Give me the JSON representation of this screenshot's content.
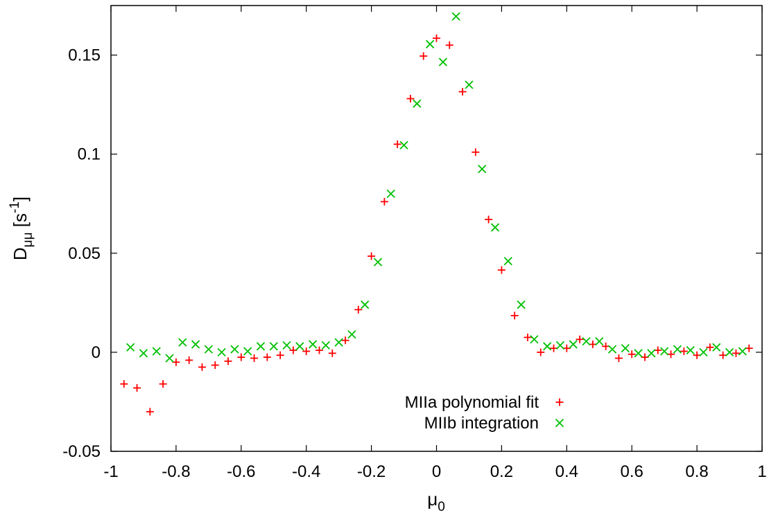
{
  "chart_data": {
    "type": "scatter",
    "title": "",
    "xlabel": {
      "main": "μ",
      "sub": "0"
    },
    "ylabel": {
      "main": "D",
      "sub": "μμ",
      "unit_open": " [s",
      "unit_sup": "-1",
      "unit_close": "]"
    },
    "xlim": [
      -1,
      1
    ],
    "ylim": [
      -0.05,
      0.175
    ],
    "x_ticks": [
      -1,
      -0.8,
      -0.6,
      -0.4,
      -0.2,
      0,
      0.2,
      0.4,
      0.6,
      0.8,
      1
    ],
    "x_tick_labels": [
      "-1",
      "-0.8",
      "-0.6",
      "-0.4",
      "-0.2",
      "0",
      "0.2",
      "0.4",
      "0.6",
      "0.8",
      "1"
    ],
    "y_ticks": [
      -0.05,
      0,
      0.05,
      0.1,
      0.15
    ],
    "y_tick_labels": [
      "-0.05",
      "0",
      "0.05",
      "0.1",
      "0.15"
    ],
    "grid": false,
    "legend_position": "bottom-center",
    "series": [
      {
        "name": "MIIa polynomial fit",
        "marker": "plus",
        "color": "#ff0000",
        "x": [
          -0.96,
          -0.92,
          -0.88,
          -0.84,
          -0.8,
          -0.76,
          -0.72,
          -0.68,
          -0.64,
          -0.6,
          -0.56,
          -0.52,
          -0.48,
          -0.44,
          -0.4,
          -0.36,
          -0.32,
          -0.28,
          -0.24,
          -0.2,
          -0.16,
          -0.12,
          -0.08,
          -0.04,
          0.0,
          0.04,
          0.08,
          0.12,
          0.16,
          0.2,
          0.24,
          0.28,
          0.32,
          0.36,
          0.4,
          0.44,
          0.48,
          0.52,
          0.56,
          0.6,
          0.64,
          0.68,
          0.72,
          0.76,
          0.8,
          0.84,
          0.88,
          0.92,
          0.96
        ],
        "y": [
          -0.016,
          -0.018,
          -0.03,
          -0.016,
          -0.005,
          -0.004,
          -0.0075,
          -0.0065,
          -0.0045,
          -0.0025,
          -0.003,
          -0.0025,
          -0.0015,
          0.001,
          0.0005,
          0.001,
          -0.0005,
          0.006,
          0.0215,
          0.0485,
          0.076,
          0.105,
          0.128,
          0.1495,
          0.1585,
          0.155,
          0.1315,
          0.101,
          0.067,
          0.0415,
          0.0185,
          0.0075,
          0.0,
          0.002,
          0.002,
          0.0065,
          0.004,
          0.003,
          -0.003,
          -0.001,
          -0.0025,
          0.001,
          -0.001,
          0.0005,
          -0.0015,
          0.0025,
          -0.0015,
          -0.0005,
          0.002
        ]
      },
      {
        "name": "MIIb integration",
        "marker": "cross",
        "color": "#00c000",
        "x": [
          -0.94,
          -0.9,
          -0.86,
          -0.82,
          -0.78,
          -0.74,
          -0.7,
          -0.66,
          -0.62,
          -0.58,
          -0.54,
          -0.5,
          -0.46,
          -0.42,
          -0.38,
          -0.34,
          -0.3,
          -0.26,
          -0.22,
          -0.18,
          -0.14,
          -0.1,
          -0.06,
          -0.02,
          0.02,
          0.06,
          0.1,
          0.14,
          0.18,
          0.22,
          0.26,
          0.3,
          0.34,
          0.38,
          0.42,
          0.46,
          0.5,
          0.54,
          0.58,
          0.62,
          0.66,
          0.7,
          0.74,
          0.78,
          0.82,
          0.86,
          0.9,
          0.94
        ],
        "y": [
          0.0025,
          -0.0005,
          0.0005,
          -0.003,
          0.005,
          0.004,
          0.0015,
          0.0,
          0.0015,
          0.0005,
          0.003,
          0.003,
          0.0035,
          0.003,
          0.004,
          0.0035,
          0.005,
          0.009,
          0.024,
          0.0455,
          0.08,
          0.1045,
          0.1255,
          0.1555,
          0.1465,
          0.1695,
          0.135,
          0.0925,
          0.063,
          0.046,
          0.024,
          0.0065,
          0.003,
          0.0035,
          0.004,
          0.0055,
          0.0055,
          0.0015,
          0.002,
          -0.0005,
          -0.0005,
          0.0005,
          0.0015,
          0.001,
          0.0,
          0.0025,
          0.0,
          0.0005
        ]
      }
    ]
  }
}
